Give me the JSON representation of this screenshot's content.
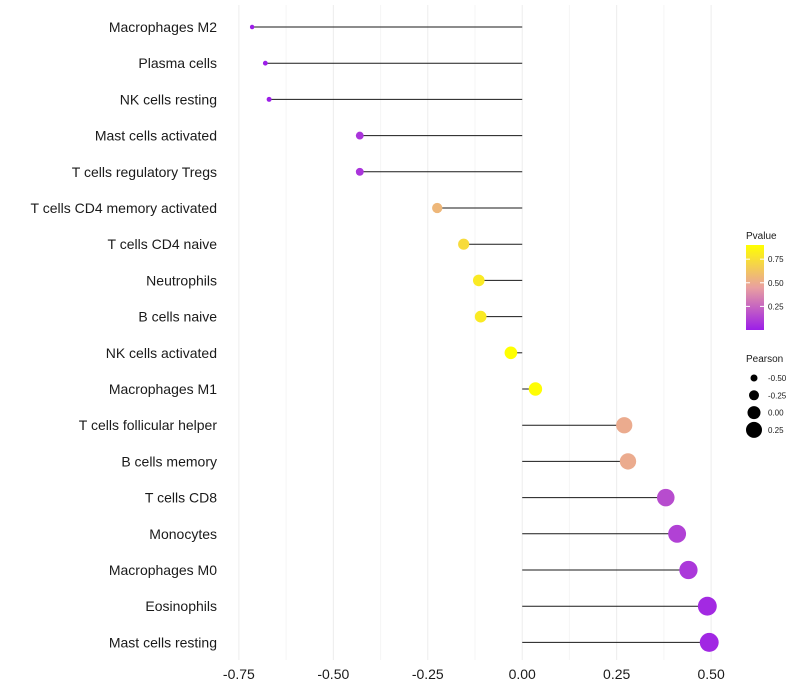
{
  "chart_data": {
    "type": "lollipop",
    "title": "",
    "xlabel": "",
    "ylabel": "",
    "xlim": [
      -0.8,
      0.55
    ],
    "x_ticks": [
      -0.75,
      -0.5,
      -0.25,
      0.0,
      0.25,
      0.5
    ],
    "x_tick_labels": [
      "-0.75",
      "-0.50",
      "-0.25",
      "0.00",
      "0.25",
      "0.50"
    ],
    "grid": true,
    "legend_position": "right",
    "categories": [
      "Macrophages M2",
      "Plasma cells",
      "NK cells resting",
      "Mast cells activated",
      "T cells regulatory  Tregs",
      "T cells CD4 memory activated",
      "T cells CD4 naive",
      "Neutrophils",
      "B cells naive",
      "NK cells activated",
      "Macrophages M1",
      "T cells follicular helper",
      "B cells memory",
      "T cells CD8",
      "Monocytes",
      "Macrophages M0",
      "Eosinophils",
      "Mast cells resting"
    ],
    "pearson": [
      -0.715,
      -0.68,
      -0.67,
      -0.43,
      -0.43,
      -0.225,
      -0.155,
      -0.115,
      -0.11,
      -0.03,
      0.035,
      0.27,
      0.28,
      0.38,
      0.41,
      0.44,
      0.49,
      0.495
    ],
    "pvalue": [
      0.0,
      0.0,
      0.0,
      0.08,
      0.08,
      0.56,
      0.73,
      0.8,
      0.8,
      0.93,
      0.89,
      0.5,
      0.5,
      0.16,
      0.12,
      0.09,
      0.04,
      0.03
    ],
    "legend_color": {
      "title": "Pvalue",
      "ticks": [
        0.75,
        0.5,
        0.25
      ],
      "tick_labels": [
        "0.75",
        "0.50",
        "0.25"
      ],
      "range": [
        0.0,
        0.9
      ],
      "colors": [
        "#9c1ee8",
        "#e9a0a0",
        "#ffff00"
      ]
    },
    "legend_size": {
      "title": "Pearson",
      "values": [
        -0.5,
        -0.25,
        0.0,
        0.25
      ],
      "labels": [
        "-0.50",
        "-0.25",
        "0.00",
        "0.25"
      ]
    }
  }
}
